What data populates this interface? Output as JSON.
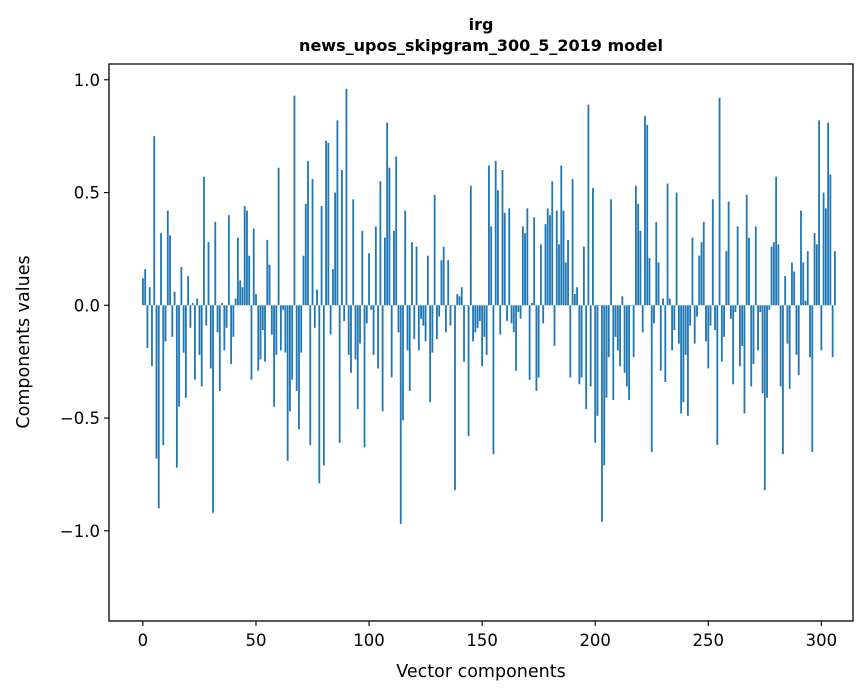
{
  "chart_data": {
    "type": "bar",
    "title_lines": [
      "irg",
      "news_upos_skipgram_300_5_2019 model"
    ],
    "xlabel": "Vector components",
    "ylabel": "Components values",
    "xlim": [
      -15,
      314
    ],
    "ylim": [
      -1.4,
      1.07
    ],
    "xticks": [
      0,
      50,
      100,
      150,
      200,
      250,
      300
    ],
    "xtick_labels": [
      "0",
      "50",
      "100",
      "150",
      "200",
      "250",
      "300"
    ],
    "yticks": [
      1.0,
      0.5,
      0.0,
      -0.5,
      -1.0
    ],
    "ytick_labels": [
      "1.0",
      "0.5",
      "0.0",
      "−0.5",
      "−1.0"
    ],
    "grid": false,
    "bar_color": "#1f77b4",
    "values": [
      0.12,
      0.16,
      -0.19,
      0.08,
      -0.27,
      0.75,
      -0.68,
      -0.9,
      0.32,
      -0.62,
      -0.16,
      0.42,
      0.31,
      -0.14,
      0.06,
      -0.72,
      -0.45,
      0.17,
      -0.21,
      -0.41,
      0.13,
      -0.1,
      0.01,
      -0.33,
      0.03,
      -0.22,
      -0.36,
      0.57,
      -0.09,
      0.28,
      -0.28,
      -0.92,
      0.37,
      -0.12,
      -0.38,
      0.01,
      -0.2,
      -0.1,
      0.4,
      -0.26,
      -0.14,
      0.03,
      0.3,
      0.11,
      0.08,
      0.44,
      0.42,
      0.22,
      -0.33,
      0.34,
      0.05,
      -0.29,
      -0.24,
      -0.11,
      -0.25,
      0.29,
      0.18,
      -0.13,
      -0.45,
      -0.22,
      0.61,
      -0.2,
      -0.02,
      -0.21,
      -0.69,
      -0.47,
      -0.33,
      0.93,
      -0.38,
      -0.55,
      -0.21,
      0.22,
      0.45,
      0.64,
      -0.62,
      0.56,
      -0.1,
      0.07,
      -0.79,
      0.44,
      -0.71,
      0.73,
      0.72,
      -0.13,
      0.16,
      0.5,
      0.82,
      -0.61,
      0.6,
      -0.07,
      0.96,
      -0.22,
      -0.3,
      0.47,
      -0.24,
      -0.46,
      -0.17,
      0.33,
      -0.63,
      -0.08,
      0.23,
      -0.02,
      -0.22,
      0.35,
      -0.28,
      0.55,
      -0.47,
      0.3,
      0.81,
      0.61,
      -0.32,
      0.33,
      0.66,
      -0.12,
      -0.97,
      -0.51,
      0.42,
      -0.2,
      -0.38,
      0.28,
      -0.15,
      0.26,
      -0.2,
      -0.06,
      -0.09,
      -0.16,
      0.22,
      -0.43,
      -0.21,
      0.49,
      -0.15,
      -0.05,
      0.2,
      0.26,
      -0.12,
      0.2,
      -0.09,
      0.0,
      -0.82,
      0.05,
      0.04,
      0.08,
      -0.25,
      0.0,
      -0.58,
      0.53,
      -0.16,
      -0.12,
      -0.1,
      -0.07,
      -0.27,
      -0.14,
      -0.22,
      0.62,
      0.35,
      -0.66,
      0.64,
      0.51,
      -0.13,
      0.6,
      0.41,
      -0.07,
      0.43,
      -0.08,
      -0.12,
      -0.29,
      -0.03,
      -0.06,
      0.35,
      0.32,
      0.43,
      -0.33,
      0.01,
      0.39,
      -0.38,
      -0.32,
      0.27,
      -0.08,
      0.36,
      0.43,
      0.4,
      0.55,
      -0.18,
      0.42,
      0.27,
      0.62,
      0.42,
      0.19,
      0.29,
      -0.32,
      0.56,
      0.05,
      0.08,
      -0.35,
      -0.32,
      0.26,
      -0.46,
      0.89,
      -0.36,
      0.52,
      -0.61,
      -0.49,
      0.0,
      -0.96,
      -0.71,
      -0.41,
      -0.23,
      0.47,
      -0.42,
      -0.14,
      -0.2,
      -0.27,
      0.04,
      -0.3,
      -0.36,
      -0.42,
      0.0,
      -0.23,
      0.53,
      0.45,
      0.33,
      -0.12,
      0.84,
      0.8,
      0.21,
      -0.65,
      -0.08,
      0.37,
      0.19,
      -0.29,
      0.03,
      -0.34,
      0.54,
      0.03,
      -0.2,
      -0.11,
      0.5,
      -0.17,
      -0.48,
      -0.43,
      -0.22,
      -0.49,
      -0.09,
      0.3,
      -0.17,
      -0.05,
      0.22,
      0.28,
      0.37,
      -0.16,
      -0.28,
      -0.09,
      0.47,
      -0.11,
      -0.62,
      0.92,
      -0.25,
      -0.14,
      0.24,
      0.46,
      -0.06,
      -0.35,
      -0.03,
      0.35,
      -0.27,
      -0.18,
      -0.48,
      0.49,
      0.3,
      -0.36,
      -0.26,
      0.35,
      -0.2,
      -0.03,
      -0.39,
      -0.82,
      -0.41,
      -0.02,
      0.26,
      0.28,
      0.57,
      0.27,
      -0.36,
      -0.66,
      0.13,
      -0.17,
      -0.37,
      0.19,
      0.15,
      -0.22,
      -0.31,
      0.42,
      0.19,
      0.02,
      0.24,
      -0.23,
      -0.65,
      0.32,
      0.27,
      0.82,
      -0.2,
      0.5,
      0.43,
      0.81,
      0.58,
      -0.23,
      0.24
    ]
  }
}
